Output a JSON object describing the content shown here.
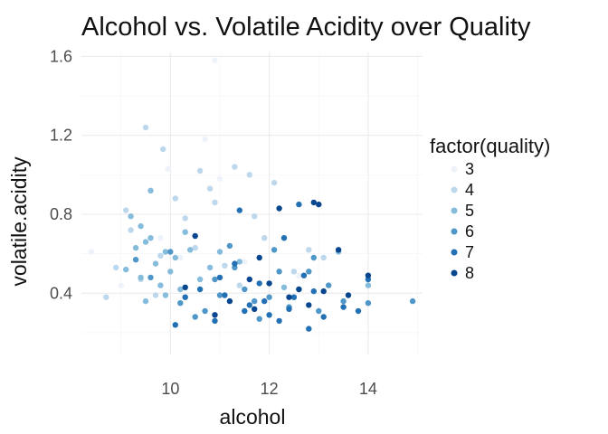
{
  "chart_data": {
    "type": "scatter",
    "title": "Alcohol vs. Volatile Acidity over Quality",
    "xlabel": "alcohol",
    "ylabel": "volatile.acidity",
    "xlim": [
      8.2,
      15.1
    ],
    "ylim": [
      0.09,
      1.62
    ],
    "x_major_ticks": [
      10,
      12,
      14
    ],
    "x_minor_ticks": [
      9,
      11,
      13,
      15
    ],
    "y_major_ticks": [
      0.4,
      0.8,
      1.2,
      1.6
    ],
    "y_minor_ticks": [
      0.2,
      0.6,
      1.0,
      1.4
    ],
    "x_tick_labels": [
      "10",
      "12",
      "14"
    ],
    "y_tick_labels": [
      "0.4",
      "0.8",
      "1.2",
      "1.6"
    ],
    "grid": true,
    "legend": {
      "title": "factor(quality)",
      "placement": "right",
      "entries": [
        "3",
        "4",
        "5",
        "6",
        "7",
        "8"
      ]
    },
    "colors": {
      "3": "#eef3fb",
      "4": "#bdd7ec",
      "5": "#85bcdc",
      "6": "#4f96c9",
      "7": "#2370b4",
      "8": "#08468f"
    },
    "series": [
      {
        "name": "3",
        "points": [
          [
            8.4,
            0.61
          ],
          [
            10.9,
            1.58
          ],
          [
            9.95,
            1.03
          ],
          [
            10.7,
            1.18
          ],
          [
            11.0,
            0.98
          ],
          [
            9.8,
            0.68
          ],
          [
            12.6,
            0.49
          ],
          [
            10.2,
            0.58
          ],
          [
            9.0,
            0.44
          ],
          [
            11.5,
            0.56
          ]
        ]
      },
      {
        "name": "4",
        "points": [
          [
            9.5,
            1.24
          ],
          [
            9.85,
            1.13
          ],
          [
            10.6,
            1.02
          ],
          [
            11.3,
            1.04
          ],
          [
            11.6,
            1.0
          ],
          [
            12.1,
            0.96
          ],
          [
            10.1,
            0.88
          ],
          [
            9.2,
            0.72
          ],
          [
            9.8,
            0.59
          ],
          [
            10.5,
            0.63
          ],
          [
            11.1,
            0.54
          ],
          [
            11.9,
            0.68
          ],
          [
            12.5,
            0.51
          ],
          [
            13.1,
            0.58
          ],
          [
            10.3,
            0.78
          ],
          [
            9.4,
            0.47
          ],
          [
            8.7,
            0.38
          ],
          [
            11.4,
            0.44
          ],
          [
            9.7,
            0.39
          ],
          [
            10.9,
            0.86
          ],
          [
            10.8,
            0.93
          ],
          [
            9.1,
            0.82
          ],
          [
            12.8,
            0.62
          ],
          [
            8.9,
            0.53
          ],
          [
            11.7,
            0.79
          ]
        ]
      },
      {
        "name": "5",
        "points": [
          [
            9.2,
            0.79
          ],
          [
            9.5,
            0.66
          ],
          [
            9.7,
            0.55
          ],
          [
            9.4,
            0.48
          ],
          [
            9.9,
            0.61
          ],
          [
            10.3,
            0.71
          ],
          [
            9.1,
            0.52
          ],
          [
            10.6,
            0.47
          ],
          [
            9.6,
            0.92
          ],
          [
            10.1,
            0.58
          ],
          [
            9.8,
            0.44
          ],
          [
            9.3,
            0.63
          ],
          [
            10.8,
            0.53
          ],
          [
            9.5,
            0.36
          ],
          [
            10.2,
            0.42
          ],
          [
            11.0,
            0.61
          ],
          [
            9.4,
            0.74
          ],
          [
            9.9,
            0.39
          ],
          [
            10.4,
            0.62
          ],
          [
            11.4,
            0.56
          ],
          [
            9.6,
            0.68
          ],
          [
            10.0,
            0.51
          ],
          [
            12.3,
            0.43
          ],
          [
            13.4,
            0.61
          ],
          [
            14.0,
            0.44
          ]
        ]
      },
      {
        "name": "6",
        "points": [
          [
            10.2,
            0.35
          ],
          [
            11.5,
            0.42
          ],
          [
            12.0,
            0.38
          ],
          [
            12.8,
            0.51
          ],
          [
            11.2,
            0.64
          ],
          [
            10.5,
            0.28
          ],
          [
            9.6,
            0.48
          ],
          [
            12.4,
            0.33
          ],
          [
            13.5,
            0.36
          ],
          [
            11.8,
            0.27
          ],
          [
            10.9,
            0.47
          ],
          [
            12.9,
            0.58
          ],
          [
            14.9,
            0.36
          ],
          [
            13.2,
            0.44
          ],
          [
            11.3,
            0.53
          ],
          [
            12.1,
            0.62
          ],
          [
            10.0,
            0.61
          ],
          [
            9.3,
            0.57
          ],
          [
            11.7,
            0.36
          ],
          [
            12.6,
            0.42
          ],
          [
            13.0,
            0.31
          ],
          [
            11.0,
            0.39
          ],
          [
            10.7,
            0.31
          ],
          [
            14.0,
            0.35
          ],
          [
            12.2,
            0.51
          ]
        ]
      },
      {
        "name": "7",
        "points": [
          [
            11.1,
            0.39
          ],
          [
            11.8,
            0.45
          ],
          [
            12.4,
            0.32
          ],
          [
            12.9,
            0.41
          ],
          [
            11.5,
            0.31
          ],
          [
            10.9,
            0.26
          ],
          [
            12.0,
            0.29
          ],
          [
            11.3,
            0.55
          ],
          [
            12.3,
            0.68
          ],
          [
            11.9,
            0.36
          ],
          [
            13.1,
            0.28
          ],
          [
            10.6,
            0.42
          ],
          [
            12.7,
            0.49
          ],
          [
            11.6,
            0.34
          ],
          [
            10.3,
            0.38
          ],
          [
            12.2,
            0.26
          ],
          [
            13.5,
            0.33
          ],
          [
            14.0,
            0.47
          ],
          [
            11.4,
            0.82
          ],
          [
            12.6,
            0.85
          ],
          [
            12.8,
            0.22
          ],
          [
            11.0,
            0.48
          ],
          [
            10.1,
            0.24
          ],
          [
            12.5,
            0.38
          ],
          [
            13.8,
            0.31
          ]
        ]
      },
      {
        "name": "8",
        "points": [
          [
            12.9,
            0.86
          ],
          [
            13.0,
            0.85
          ],
          [
            12.2,
            0.83
          ],
          [
            13.4,
            0.62
          ],
          [
            14.0,
            0.49
          ],
          [
            12.4,
            0.38
          ],
          [
            11.7,
            0.32
          ],
          [
            13.1,
            0.41
          ],
          [
            12.8,
            0.34
          ],
          [
            11.2,
            0.36
          ],
          [
            12.0,
            0.45
          ],
          [
            10.3,
            0.43
          ],
          [
            13.6,
            0.39
          ],
          [
            11.6,
            0.47
          ],
          [
            12.6,
            0.42
          ],
          [
            10.9,
            0.29
          ],
          [
            10.5,
            0.69
          ],
          [
            11.8,
            0.58
          ]
        ]
      }
    ]
  }
}
